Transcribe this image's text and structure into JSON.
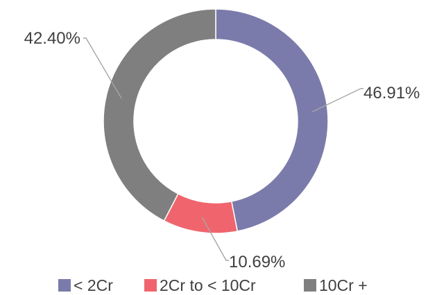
{
  "chart_data": {
    "type": "pie",
    "variant": "donut",
    "title": "",
    "slices": [
      {
        "label": "< 2Cr",
        "value": 46.91,
        "display": "46.91%",
        "color": "#7b7bab"
      },
      {
        "label": "2Cr to < 10Cr",
        "value": 10.69,
        "display": "10.69%",
        "color": "#f0656d"
      },
      {
        "label": "10Cr +",
        "value": 42.4,
        "display": "42.40%",
        "color": "#7f7f7f"
      }
    ],
    "legend_position": "bottom"
  }
}
